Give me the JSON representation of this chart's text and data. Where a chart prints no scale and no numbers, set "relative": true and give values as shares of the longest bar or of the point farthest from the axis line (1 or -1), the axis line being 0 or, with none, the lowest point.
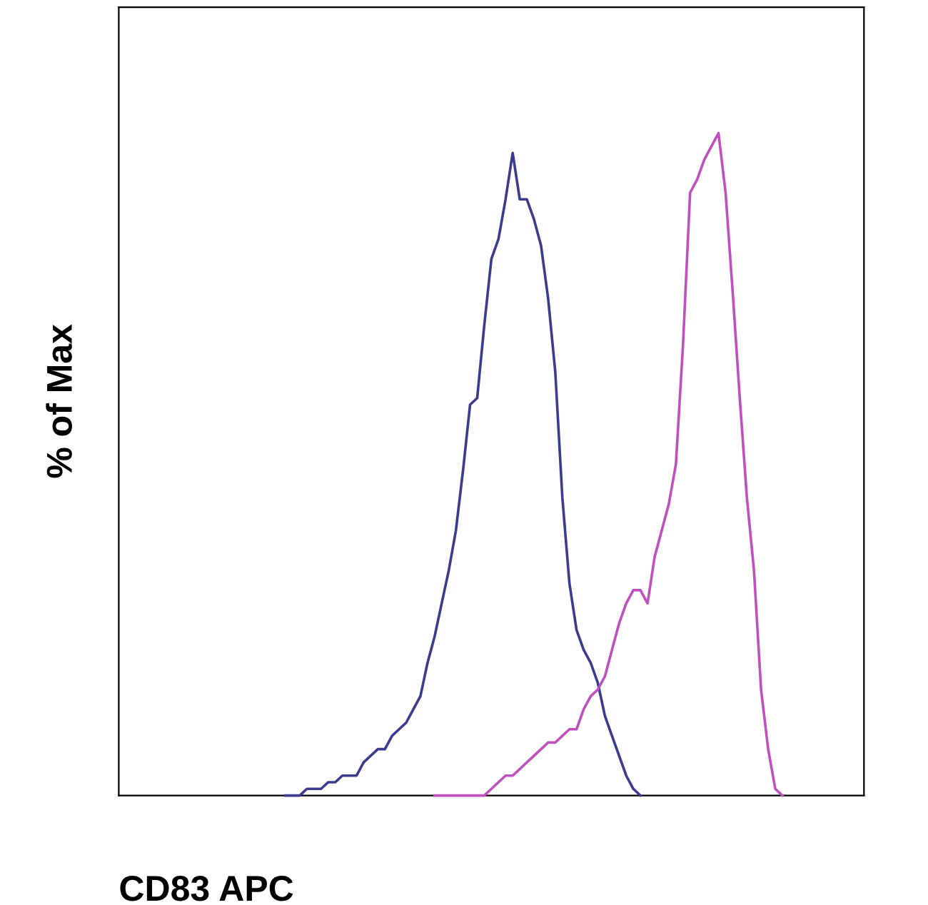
{
  "chart_data": {
    "type": "line",
    "relative": true,
    "xlabel": "CD83 APC",
    "ylabel": "% of Max",
    "grid": false,
    "legend": false,
    "marker": "none",
    "line_style": "solid",
    "tick_labels": false,
    "categories": [
      null,
      null,
      null,
      null,
      null,
      null,
      null,
      null,
      null,
      null,
      null,
      null,
      null,
      null,
      null,
      null,
      null,
      null,
      null,
      null,
      null,
      null,
      null,
      null,
      null,
      null,
      null,
      null,
      null,
      null,
      null,
      null,
      null,
      null,
      null,
      null,
      null,
      null,
      null,
      null,
      null,
      null,
      null,
      null,
      null,
      null,
      null,
      null,
      null,
      null,
      null,
      null,
      null,
      null,
      null,
      null,
      null,
      null,
      null,
      null,
      null,
      null,
      null,
      null,
      null,
      null,
      null,
      null,
      null,
      null,
      null,
      null,
      null,
      null,
      null,
      null,
      null,
      null,
      null,
      null,
      null,
      null,
      null,
      null,
      null,
      null,
      null,
      null,
      null,
      null,
      null,
      null,
      null,
      null,
      null,
      null,
      null,
      null,
      null,
      null,
      null,
      null,
      null,
      null,
      null
    ],
    "series": [
      {
        "color": "#3b3b8f",
        "values": [
          null,
          null,
          null,
          null,
          null,
          null,
          null,
          null,
          null,
          null,
          null,
          null,
          null,
          null,
          null,
          null,
          null,
          null,
          null,
          null,
          null,
          null,
          null,
          0,
          0.0,
          0.0,
          0.01,
          0.01,
          0.01,
          0.02,
          0.02,
          0.03,
          0.03,
          0.03,
          0.05,
          0.06,
          0.07,
          0.07,
          0.09,
          0.1,
          0.11,
          0.13,
          0.15,
          0.2,
          0.24,
          0.29,
          0.34,
          0.4,
          0.49,
          0.59,
          0.6,
          0.71,
          0.81,
          0.84,
          0.9,
          0.97,
          0.9,
          0.9,
          0.87,
          0.83,
          0.75,
          0.64,
          0.45,
          0.32,
          0.25,
          0.22,
          0.2,
          0.17,
          0.12,
          0.09,
          0.06,
          0.03,
          0.01,
          0,
          null,
          null,
          null,
          null,
          null,
          null,
          null,
          null,
          null,
          null,
          null,
          null,
          null,
          null,
          null,
          null,
          null,
          null,
          null,
          null,
          null,
          null,
          null,
          null,
          null,
          null,
          null,
          null,
          null,
          null,
          null
        ]
      },
      {
        "color": "#c050c0",
        "values": [
          null,
          null,
          null,
          null,
          null,
          null,
          null,
          null,
          null,
          null,
          null,
          null,
          null,
          null,
          null,
          null,
          null,
          null,
          null,
          null,
          null,
          null,
          null,
          null,
          null,
          null,
          null,
          null,
          null,
          null,
          null,
          null,
          null,
          null,
          null,
          null,
          null,
          null,
          null,
          null,
          null,
          null,
          null,
          null,
          0,
          0,
          0,
          0,
          0,
          0,
          0,
          0,
          0.01,
          0.02,
          0.03,
          0.03,
          0.04,
          0.05,
          0.06,
          0.07,
          0.08,
          0.08,
          0.09,
          0.1,
          0.1,
          0.13,
          0.15,
          0.16,
          0.18,
          0.22,
          0.26,
          0.29,
          0.31,
          0.31,
          0.29,
          0.36,
          0.4,
          0.44,
          0.5,
          0.68,
          0.91,
          0.93,
          0.96,
          0.98,
          1.0,
          0.91,
          0.76,
          0.6,
          0.45,
          0.34,
          0.16,
          0.07,
          0.01,
          0,
          null,
          null,
          null,
          null,
          null,
          null,
          null,
          null,
          null,
          null,
          null
        ]
      }
    ]
  }
}
